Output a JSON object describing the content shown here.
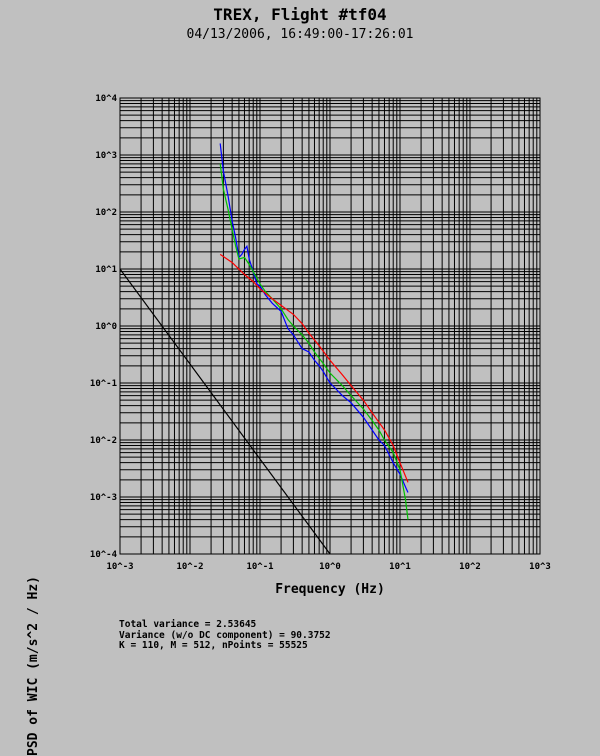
{
  "chart_data": {
    "type": "line",
    "title": "TREX, Flight #tf04",
    "subtitle": "04/13/2006, 16:49:00-17:26:01",
    "xlabel": "Frequency (Hz)",
    "ylabel": "PSD of WIC (m/s^2 / Hz)",
    "xscale": "log",
    "yscale": "log",
    "xlim": [
      0.001,
      1000
    ],
    "ylim": [
      0.0001,
      10000
    ],
    "x_tick_labels": [
      "10^-3",
      "10^-2",
      "10^-1",
      "10^0",
      "10^1",
      "10^2",
      "10^3"
    ],
    "y_tick_labels": [
      "10^4",
      "10^3",
      "10^2",
      "10^1",
      "10^0",
      "10^-1",
      "10^-2",
      "10^-3",
      "10^-4"
    ],
    "grid": true,
    "series": [
      {
        "color": "#0000ff",
        "x": [
          0.027,
          0.03,
          0.035,
          0.04,
          0.045,
          0.05,
          0.055,
          0.06,
          0.065,
          0.07,
          0.08,
          0.09,
          0.1,
          0.12,
          0.15,
          0.2,
          0.25,
          0.3,
          0.4,
          0.5,
          0.6,
          0.7,
          0.8,
          1.0,
          1.2,
          1.5,
          2.0,
          3.0,
          4.0,
          5.0,
          6.0,
          8.0,
          10.0,
          12.0,
          13.0
        ],
        "y": [
          1600,
          520,
          190,
          70,
          35,
          16,
          18,
          22,
          25,
          15,
          9,
          5.5,
          5,
          3.5,
          2.5,
          1.8,
          0.9,
          0.7,
          0.4,
          0.35,
          0.25,
          0.2,
          0.16,
          0.1,
          0.08,
          0.06,
          0.045,
          0.025,
          0.015,
          0.01,
          0.008,
          0.004,
          0.0025,
          0.0015,
          0.0012
        ]
      },
      {
        "color": "#00c000",
        "x": [
          0.027,
          0.03,
          0.035,
          0.04,
          0.045,
          0.05,
          0.06,
          0.07,
          0.08,
          0.1,
          0.12,
          0.15,
          0.2,
          0.25,
          0.3,
          0.4,
          0.5,
          0.6,
          0.8,
          1.0,
          1.5,
          2.0,
          3.0,
          4.0,
          5.0,
          6.0,
          8.0,
          10.0,
          12.0,
          13.0
        ],
        "y": [
          700,
          250,
          110,
          50,
          25,
          15,
          16,
          12,
          9,
          5.5,
          4,
          3,
          2,
          1.3,
          1.0,
          0.7,
          0.5,
          0.35,
          0.22,
          0.15,
          0.09,
          0.06,
          0.035,
          0.022,
          0.015,
          0.01,
          0.006,
          0.003,
          0.0009,
          0.0004
        ]
      },
      {
        "color": "#ff0000",
        "x": [
          0.027,
          0.04,
          0.06,
          0.08,
          0.1,
          0.15,
          0.2,
          0.3,
          0.4,
          0.5,
          0.7,
          1.0,
          1.5,
          2.0,
          3.0,
          4.0,
          6.0,
          8.0,
          10.0,
          13.0
        ],
        "y": [
          18,
          13,
          8,
          6,
          4.5,
          3,
          2.3,
          1.6,
          1.1,
          0.75,
          0.45,
          0.25,
          0.14,
          0.09,
          0.05,
          0.03,
          0.015,
          0.008,
          0.004,
          0.0018
        ]
      },
      {
        "color": "#000000",
        "x": [
          0.001,
          1.0
        ],
        "y": [
          10,
          0.0001
        ]
      }
    ]
  },
  "stats": {
    "line1": "Total variance = 2.53645",
    "line2": "Variance (w/o DC component) = 90.3752",
    "line3": "K = 110, M = 512, nPoints = 55525"
  }
}
